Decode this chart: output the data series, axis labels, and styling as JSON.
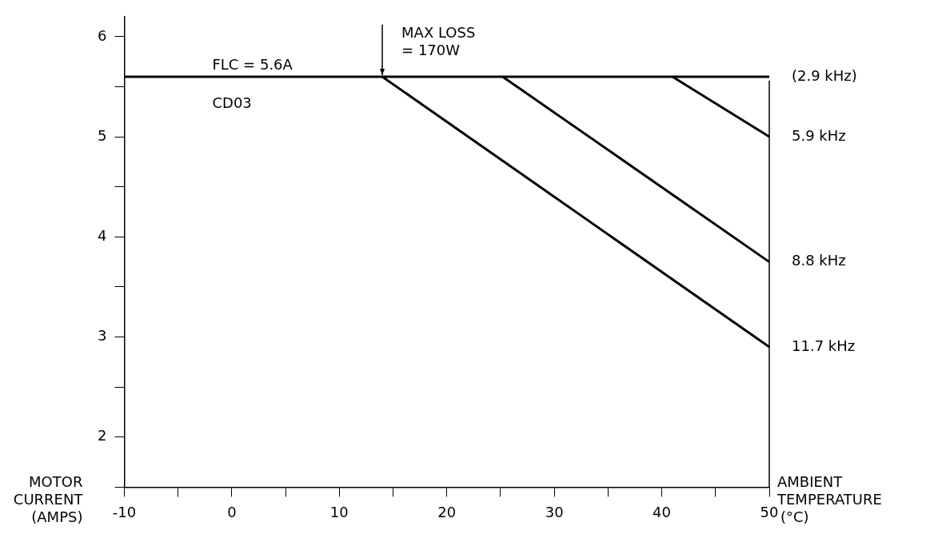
{
  "chart_data": {
    "type": "line",
    "xlabel": "AMBIENT TEMPERATURE (°C)",
    "ylabel": "MOTOR CURRENT (AMPS)",
    "xlim": [
      -10,
      50
    ],
    "ylim": [
      1.5,
      6.2
    ],
    "xticks": [
      -10,
      {
        "value": -5,
        "label": null
      },
      0,
      {
        "value": 5,
        "label": null
      },
      10,
      {
        "value": 15,
        "label": null
      },
      20,
      {
        "value": 25,
        "label": null
      },
      30,
      {
        "value": 35,
        "label": null
      },
      40,
      {
        "value": 45,
        "label": null
      },
      50
    ],
    "yticks": [
      {
        "value": 1.5,
        "label": null
      },
      2,
      {
        "value": 2.5,
        "label": null
      },
      3,
      {
        "value": 3.5,
        "label": null
      },
      4,
      {
        "value": 4.5,
        "label": null
      },
      5,
      {
        "value": 5.5,
        "label": null
      },
      6
    ],
    "grid": false,
    "legend": false,
    "marker": "none",
    "line_style": "solid",
    "series": [
      {
        "name": "(2.9 kHz)",
        "color": "#000000",
        "x": [
          -10,
          50
        ],
        "values": [
          5.6,
          5.6
        ]
      },
      {
        "name": "5.9 kHz",
        "color": "#000000",
        "x": [
          41,
          50
        ],
        "values": [
          5.6,
          5.0
        ]
      },
      {
        "name": "8.8 kHz",
        "color": "#000000",
        "x": [
          25.2,
          50
        ],
        "values": [
          5.6,
          3.75
        ]
      },
      {
        "name": "11.7 kHz",
        "color": "#000000",
        "x": [
          14,
          50
        ],
        "values": [
          5.6,
          2.9
        ]
      }
    ],
    "ref_lines": [
      {
        "axis": "x",
        "value": 50,
        "label": null,
        "color": "#000000"
      }
    ],
    "annotations": [
      "FLC = 5.6A",
      "CD03",
      {
        "text": "MAX LOSS\n= 170W",
        "x": 14,
        "y": 5.6
      }
    ]
  }
}
